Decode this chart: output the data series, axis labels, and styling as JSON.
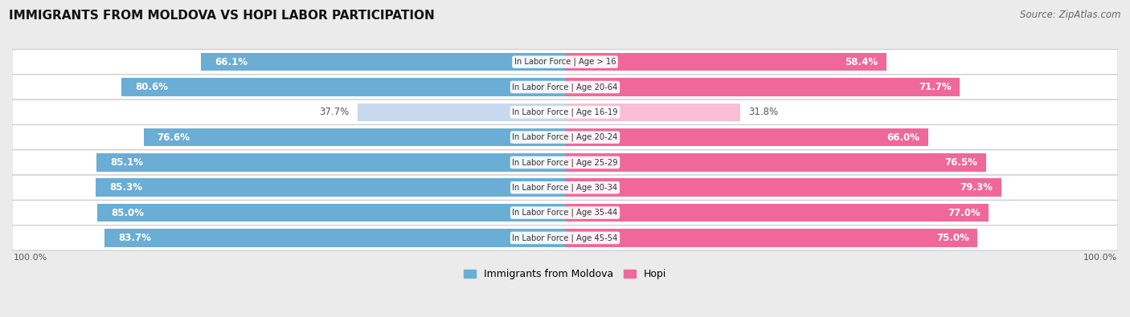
{
  "title": "IMMIGRANTS FROM MOLDOVA VS HOPI LABOR PARTICIPATION",
  "source": "Source: ZipAtlas.com",
  "categories": [
    "In Labor Force | Age > 16",
    "In Labor Force | Age 20-64",
    "In Labor Force | Age 16-19",
    "In Labor Force | Age 20-24",
    "In Labor Force | Age 25-29",
    "In Labor Force | Age 30-34",
    "In Labor Force | Age 35-44",
    "In Labor Force | Age 45-54"
  ],
  "moldova_values": [
    66.1,
    80.6,
    37.7,
    76.6,
    85.1,
    85.3,
    85.0,
    83.7
  ],
  "hopi_values": [
    58.4,
    71.7,
    31.8,
    66.0,
    76.5,
    79.3,
    77.0,
    75.0
  ],
  "moldova_color_strong": "#6aadd5",
  "moldova_color_light": "#c6d9ee",
  "hopi_color_strong": "#f06899",
  "hopi_color_light": "#f9bdd4",
  "background_color": "#ebebeb",
  "row_bg_color": "#f5f5f5",
  "max_value": 100.0,
  "legend_moldova": "Immigrants from Moldova",
  "legend_hopi": "Hopi",
  "threshold": 50.0
}
